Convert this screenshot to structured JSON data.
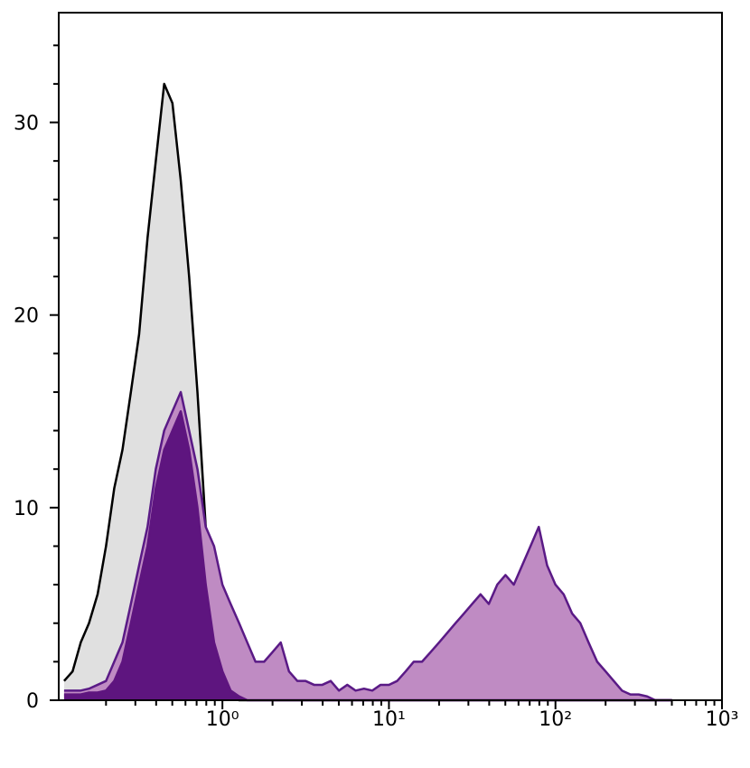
{
  "chart_data": {
    "type": "histogram-overlay",
    "xscale": "log",
    "xlim": [
      0.104,
      1000
    ],
    "ylim": [
      0,
      35.7
    ],
    "xticks": [
      {
        "value": 1,
        "label": "10⁰"
      },
      {
        "value": 10,
        "label": "10¹"
      },
      {
        "value": 100,
        "label": "10²"
      },
      {
        "value": 1000,
        "label": "10³"
      }
    ],
    "xminorticks": [
      0.2,
      0.3,
      0.4,
      0.5,
      0.6,
      0.7,
      0.8,
      0.9,
      2,
      3,
      4,
      5,
      6,
      7,
      8,
      9,
      20,
      30,
      40,
      50,
      60,
      70,
      80,
      90,
      200,
      300,
      400,
      500,
      600,
      700,
      800,
      900
    ],
    "yticks": [
      0,
      10,
      20,
      30
    ],
    "yminorticks": [
      2,
      4,
      6,
      8,
      12,
      14,
      16,
      18,
      22,
      24,
      26,
      28,
      32,
      34
    ],
    "x": [
      0.112,
      0.126,
      0.141,
      0.158,
      0.178,
      0.2,
      0.224,
      0.251,
      0.282,
      0.316,
      0.355,
      0.398,
      0.447,
      0.501,
      0.562,
      0.631,
      0.708,
      0.794,
      0.891,
      1,
      1.12,
      1.26,
      1.41,
      1.58,
      1.78,
      2,
      2.24,
      2.51,
      2.82,
      3.16,
      3.55,
      3.98,
      4.47,
      5.01,
      5.62,
      6.31,
      7.08,
      7.94,
      8.91,
      10,
      11.2,
      12.6,
      14.1,
      15.8,
      17.8,
      20,
      22.4,
      25.1,
      28.2,
      31.6,
      35.5,
      39.8,
      44.7,
      50.1,
      56.2,
      63.1,
      70.8,
      79.4,
      89.1,
      100,
      112,
      126,
      141,
      158,
      178,
      200,
      224,
      251,
      282,
      316,
      355,
      398,
      447,
      501
    ],
    "series": [
      {
        "color": "#e0e0e0",
        "edgecolor": "#000000",
        "values": [
          1,
          1.5,
          3,
          4,
          5.5,
          8,
          11,
          13,
          16,
          19,
          24,
          28,
          32,
          31,
          27,
          22,
          16,
          9,
          4,
          1.5,
          0.5,
          0,
          0,
          0,
          0,
          0,
          0,
          0,
          0,
          0,
          0,
          0,
          0,
          0,
          0,
          0,
          0,
          0,
          0,
          0,
          0,
          0,
          0,
          0,
          0,
          0,
          0,
          0,
          0,
          0,
          0,
          0,
          0,
          0,
          0,
          0,
          0,
          0,
          0,
          0,
          0,
          0,
          0,
          0,
          0,
          0,
          0,
          0,
          0,
          0,
          0,
          0,
          0,
          0
        ]
      },
      {
        "color": "#bf8bc3",
        "edgecolor": "#5a1a86",
        "values": [
          0.5,
          0.5,
          0.5,
          0.6,
          0.8,
          1,
          2,
          3,
          5,
          7,
          9,
          12,
          14,
          15,
          16,
          14,
          12,
          9,
          8,
          6,
          5,
          4,
          3,
          2,
          2,
          2.5,
          3,
          1.5,
          1,
          1,
          0.8,
          0.8,
          1,
          0.5,
          0.8,
          0.5,
          0.6,
          0.5,
          0.8,
          0.8,
          1,
          1.5,
          2,
          2,
          2.5,
          3,
          3.5,
          4,
          4.5,
          5,
          5.5,
          5,
          6,
          6.5,
          6,
          7,
          8,
          9,
          7,
          6,
          5.5,
          4.5,
          4,
          3,
          2,
          1.5,
          1,
          0.5,
          0.3,
          0.3,
          0.2,
          0,
          0,
          0
        ]
      },
      {
        "color": "#5e157f",
        "edgecolor": "#5e157f",
        "values": [
          0.3,
          0.3,
          0.3,
          0.4,
          0.4,
          0.5,
          1,
          2,
          4,
          6,
          8,
          11,
          13,
          14,
          15,
          13,
          10,
          6,
          3,
          1.5,
          0.5,
          0.2,
          0,
          0,
          0,
          0,
          0,
          0,
          0,
          0,
          0,
          0,
          0,
          0,
          0,
          0,
          0,
          0,
          0,
          0,
          0,
          0,
          0,
          0,
          0,
          0,
          0,
          0,
          0,
          0,
          0,
          0,
          0,
          0,
          0,
          0,
          0,
          0,
          0,
          0,
          0,
          0,
          0,
          0,
          0,
          0,
          0,
          0,
          0,
          0,
          0,
          0,
          0,
          0
        ]
      }
    ],
    "draw_order": [
      0,
      1,
      2
    ]
  }
}
